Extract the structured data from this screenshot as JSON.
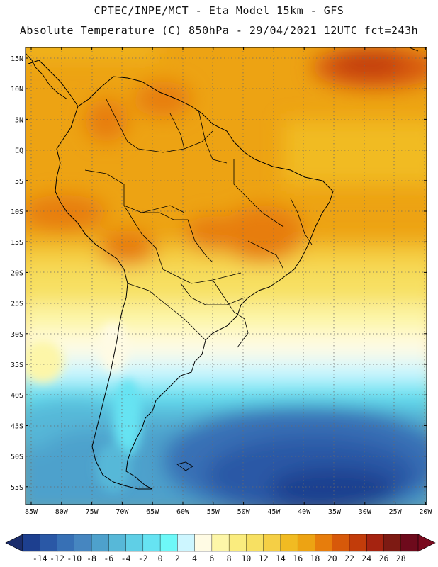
{
  "header": {
    "line1": "CPTEC/INPE/MCT -  Eta Model 15km - GFS",
    "line2": "Absolute Temperature (C) 850hPa - 29/04/2021 12UTC fct=243h"
  },
  "map": {
    "lat_labels": [
      "15N",
      "10N",
      "5N",
      "EQ",
      "5S",
      "10S",
      "15S",
      "20S",
      "25S",
      "30S",
      "35S",
      "40S",
      "45S",
      "50S",
      "55S"
    ],
    "lon_labels": [
      "85W",
      "80W",
      "75W",
      "70W",
      "65W",
      "60W",
      "55W",
      "50W",
      "45W",
      "40W",
      "35W",
      "30W",
      "25W",
      "20W"
    ]
  },
  "colorbar": {
    "values": [
      "-14",
      "-12",
      "-10",
      "-8",
      "-6",
      "-4",
      "-2",
      "0",
      "2",
      "4",
      "6",
      "8",
      "10",
      "12",
      "14",
      "16",
      "18",
      "20",
      "22",
      "24",
      "26",
      "28"
    ],
    "colors": [
      "#1d3f8f",
      "#2a58a6",
      "#3770b5",
      "#4686c0",
      "#4ea1cc",
      "#57b8d8",
      "#5fcfe6",
      "#66e3f2",
      "#6ef8f8",
      "#cdf6ff",
      "#fffbe4",
      "#fdf6a8",
      "#faec7e",
      "#f7e062",
      "#f5cf45",
      "#f1bb22",
      "#eda313",
      "#e77d0c",
      "#d7590a",
      "#c23c0a",
      "#a52310",
      "#7d1a13",
      "#6e0a1c"
    ],
    "low_arrow_color": "#1b2d6c",
    "high_arrow_color": "#7a0a1e"
  }
}
